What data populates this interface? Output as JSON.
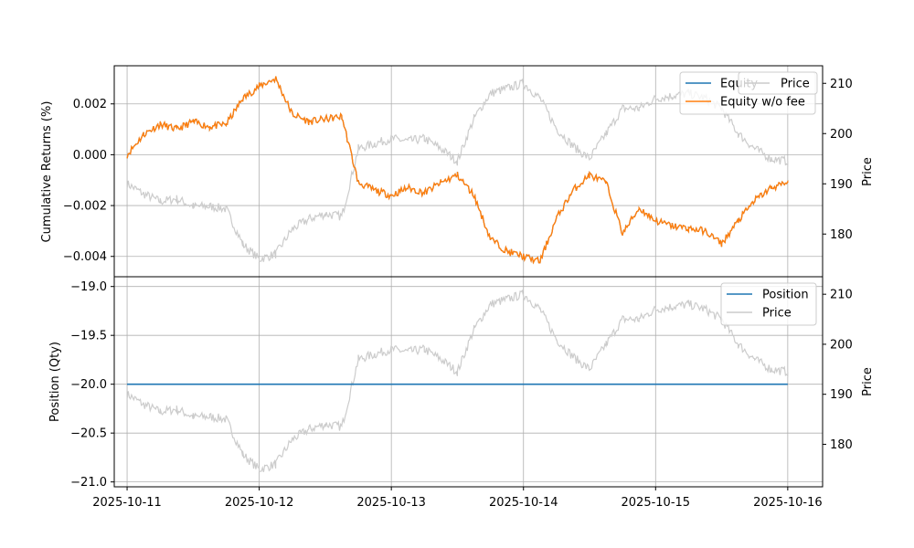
{
  "chart_data": [
    {
      "type": "line",
      "panel": "top",
      "ylabel": "Cumulative Returns (%)",
      "ylabel_right": "Price",
      "xlim": [
        "2025-10-10T21:40",
        "2025-10-16T06:20"
      ],
      "ylim": [
        -0.0048,
        0.0035
      ],
      "ylim_right": [
        171.5,
        213.5
      ],
      "yticks": [
        -0.004,
        -0.002,
        0.0,
        0.002
      ],
      "ytick_labels": [
        "−0.004",
        "−0.002",
        "0.000",
        "0.002"
      ],
      "yticks_right": [
        180,
        190,
        200,
        210
      ],
      "ytick_labels_right": [
        "180",
        "190",
        "200",
        "210"
      ],
      "grid": true,
      "legends": [
        {
          "placement": "top-right",
          "entries": [
            "Equity",
            "Equity w/o fee"
          ]
        },
        {
          "placement": "top-right",
          "entries": [
            "Price"
          ]
        }
      ],
      "series": [
        {
          "name": "Equity",
          "color": "#1f77b4",
          "axis": "left",
          "x": [
            "2025-10-11T00:00",
            "2025-10-11T03:00",
            "2025-10-11T06:00",
            "2025-10-11T09:00",
            "2025-10-11T12:00",
            "2025-10-11T15:00",
            "2025-10-11T18:00",
            "2025-10-11T21:00",
            "2025-10-12T00:00",
            "2025-10-12T03:00",
            "2025-10-12T06:00",
            "2025-10-12T09:00",
            "2025-10-12T12:00",
            "2025-10-12T15:00",
            "2025-10-12T18:00",
            "2025-10-12T21:00",
            "2025-10-13T00:00",
            "2025-10-13T03:00",
            "2025-10-13T06:00",
            "2025-10-13T09:00",
            "2025-10-13T12:00",
            "2025-10-13T15:00",
            "2025-10-13T18:00",
            "2025-10-13T21:00",
            "2025-10-14T00:00",
            "2025-10-14T03:00",
            "2025-10-14T06:00",
            "2025-10-14T09:00",
            "2025-10-14T12:00",
            "2025-10-14T15:00",
            "2025-10-14T18:00",
            "2025-10-14T21:00",
            "2025-10-15T00:00",
            "2025-10-15T03:00",
            "2025-10-15T06:00",
            "2025-10-15T09:00",
            "2025-10-15T12:00",
            "2025-10-15T15:00",
            "2025-10-15T18:00",
            "2025-10-15T21:00",
            "2025-10-16T00:00"
          ],
          "y": [
            0.0,
            0.0008,
            0.0012,
            0.001,
            0.0013,
            0.0011,
            0.0012,
            0.0022,
            0.0027,
            0.003,
            0.0016,
            0.0013,
            0.0014,
            0.0015,
            -0.0011,
            -0.0014,
            -0.0016,
            -0.0013,
            -0.0015,
            -0.0011,
            -0.0008,
            -0.0016,
            -0.0033,
            -0.0038,
            -0.004,
            -0.0042,
            -0.0025,
            -0.0014,
            -0.0008,
            -0.0011,
            -0.0031,
            -0.0021,
            -0.0026,
            -0.0028,
            -0.0029,
            -0.003,
            -0.0035,
            -0.0026,
            -0.0018,
            -0.0013,
            -0.0011
          ]
        },
        {
          "name": "Equity w/o fee",
          "color": "#ff7f0e",
          "axis": "left",
          "x": [
            "2025-10-11T00:00",
            "2025-10-11T03:00",
            "2025-10-11T06:00",
            "2025-10-11T09:00",
            "2025-10-11T12:00",
            "2025-10-11T15:00",
            "2025-10-11T18:00",
            "2025-10-11T21:00",
            "2025-10-12T00:00",
            "2025-10-12T03:00",
            "2025-10-12T06:00",
            "2025-10-12T09:00",
            "2025-10-12T12:00",
            "2025-10-12T15:00",
            "2025-10-12T18:00",
            "2025-10-12T21:00",
            "2025-10-13T00:00",
            "2025-10-13T03:00",
            "2025-10-13T06:00",
            "2025-10-13T09:00",
            "2025-10-13T12:00",
            "2025-10-13T15:00",
            "2025-10-13T18:00",
            "2025-10-13T21:00",
            "2025-10-14T00:00",
            "2025-10-14T03:00",
            "2025-10-14T06:00",
            "2025-10-14T09:00",
            "2025-10-14T12:00",
            "2025-10-14T15:00",
            "2025-10-14T18:00",
            "2025-10-14T21:00",
            "2025-10-15T00:00",
            "2025-10-15T03:00",
            "2025-10-15T06:00",
            "2025-10-15T09:00",
            "2025-10-15T12:00",
            "2025-10-15T15:00",
            "2025-10-15T18:00",
            "2025-10-15T21:00",
            "2025-10-16T00:00"
          ],
          "y": [
            0.0,
            0.0008,
            0.0012,
            0.001,
            0.0013,
            0.0011,
            0.0012,
            0.0022,
            0.0027,
            0.003,
            0.0016,
            0.0013,
            0.0014,
            0.0015,
            -0.0011,
            -0.0014,
            -0.0016,
            -0.0013,
            -0.0015,
            -0.0011,
            -0.0008,
            -0.0016,
            -0.0033,
            -0.0038,
            -0.004,
            -0.0042,
            -0.0025,
            -0.0014,
            -0.0008,
            -0.0011,
            -0.0031,
            -0.0021,
            -0.0026,
            -0.0028,
            -0.0029,
            -0.003,
            -0.0035,
            -0.0026,
            -0.0018,
            -0.0013,
            -0.0011
          ]
        },
        {
          "name": "Price",
          "color": "#cccccc",
          "axis": "right",
          "x": [
            "2025-10-11T00:00",
            "2025-10-11T03:00",
            "2025-10-11T06:00",
            "2025-10-11T09:00",
            "2025-10-11T12:00",
            "2025-10-11T15:00",
            "2025-10-11T18:00",
            "2025-10-11T21:00",
            "2025-10-12T00:00",
            "2025-10-12T03:00",
            "2025-10-12T06:00",
            "2025-10-12T09:00",
            "2025-10-12T12:00",
            "2025-10-12T15:00",
            "2025-10-12T18:00",
            "2025-10-12T21:00",
            "2025-10-13T00:00",
            "2025-10-13T03:00",
            "2025-10-13T06:00",
            "2025-10-13T09:00",
            "2025-10-13T12:00",
            "2025-10-13T15:00",
            "2025-10-13T18:00",
            "2025-10-13T21:00",
            "2025-10-14T00:00",
            "2025-10-14T03:00",
            "2025-10-14T06:00",
            "2025-10-14T09:00",
            "2025-10-14T12:00",
            "2025-10-14T15:00",
            "2025-10-14T18:00",
            "2025-10-14T21:00",
            "2025-10-15T00:00",
            "2025-10-15T03:00",
            "2025-10-15T06:00",
            "2025-10-15T09:00",
            "2025-10-15T12:00",
            "2025-10-15T15:00",
            "2025-10-15T18:00",
            "2025-10-15T21:00",
            "2025-10-16T00:00"
          ],
          "y": [
            190,
            188,
            186.5,
            187,
            185.5,
            185.5,
            185,
            178,
            175,
            176,
            181,
            183,
            184,
            183.5,
            197,
            198,
            199,
            198.5,
            199,
            197,
            194.5,
            203,
            208,
            209,
            210,
            207,
            201,
            197.5,
            195,
            200,
            205,
            205,
            207,
            207.5,
            208,
            207,
            205,
            200,
            197,
            195,
            194.5
          ]
        }
      ]
    },
    {
      "type": "line",
      "panel": "bottom",
      "ylabel": "Position (Qty)",
      "ylabel_right": "Price",
      "xlim": [
        "2025-10-10T21:40",
        "2025-10-16T06:20"
      ],
      "xticks": [
        "2025-10-11",
        "2025-10-12",
        "2025-10-13",
        "2025-10-14",
        "2025-10-15",
        "2025-10-16"
      ],
      "ylim": [
        -21.05,
        -18.9
      ],
      "ylim_right": [
        171.5,
        213.5
      ],
      "yticks": [
        -19.0,
        -19.5,
        -20.0,
        -20.5,
        -21.0
      ],
      "ytick_labels": [
        "−19.0",
        "−19.5",
        "−20.0",
        "−20.5",
        "−21.0"
      ],
      "yticks_right": [
        180,
        190,
        200,
        210
      ],
      "ytick_labels_right": [
        "180",
        "190",
        "200",
        "210"
      ],
      "grid": true,
      "legend": {
        "placement": "top-right",
        "entries": [
          "Position",
          "Price"
        ]
      },
      "series": [
        {
          "name": "Position",
          "color": "#1f77b4",
          "axis": "left",
          "x": [
            "2025-10-11T00:00",
            "2025-10-16T00:00"
          ],
          "y": [
            -20,
            -20
          ]
        },
        {
          "name": "Price",
          "color": "#cccccc",
          "axis": "right",
          "reuse": "top.Price"
        }
      ]
    }
  ]
}
